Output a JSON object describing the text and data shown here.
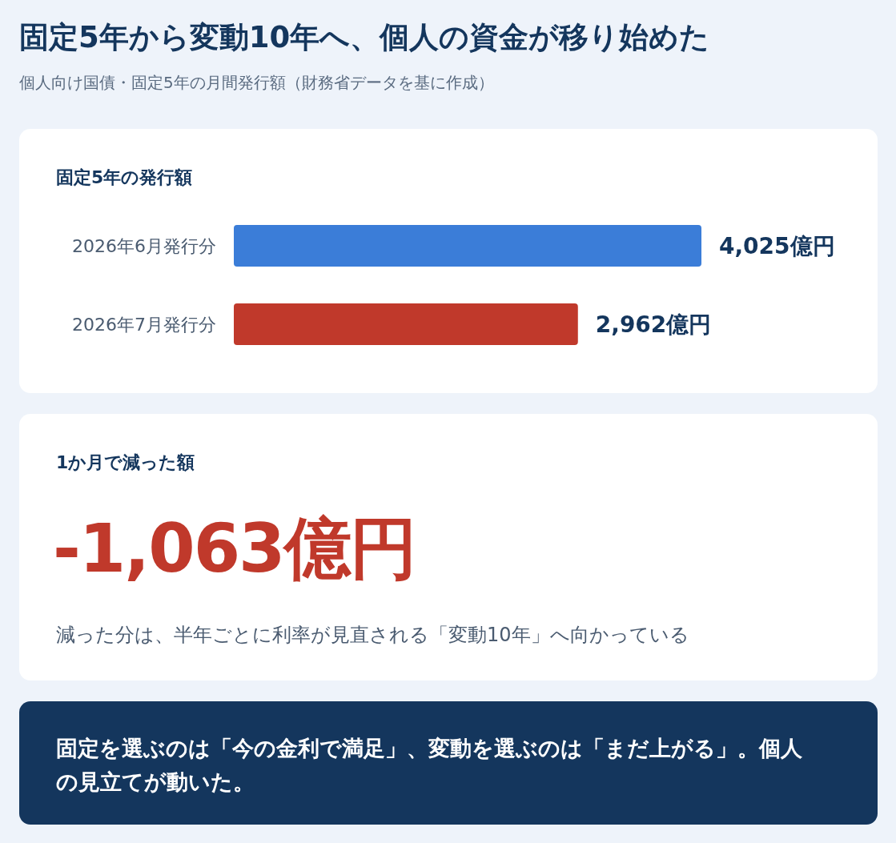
{
  "chart_data": [
    {
      "type": "other",
      "title": "固定5年から変動10年へ、個人の資金が移り始めた",
      "subtitle": "個人向け国債・固定5年の月間発行額（財務省データを基に作成）"
    },
    {
      "type": "bar",
      "orientation": "horizontal",
      "title": "固定5年の発行額",
      "categories": [
        "2026年6月発行分",
        "2026年7月発行分"
      ],
      "values": [
        4025,
        2962
      ],
      "colors": [
        "#3b7dd8",
        "#c0392b"
      ],
      "value_labels": [
        "4,025億円",
        "2,962億円"
      ]
    },
    {
      "type": "other",
      "title": "1か月で減った額",
      "annotations": [
        "-1,063億円",
        "減った分は、半年ごとに利率が見直される「変動10年」へ向かっている"
      ]
    },
    {
      "type": "other",
      "annotations": [
        "固定を選ぶのは「今の金利で満足」、変動を選ぶのは「まだ上がる」。個人の見立てが動いた。"
      ]
    }
  ]
}
